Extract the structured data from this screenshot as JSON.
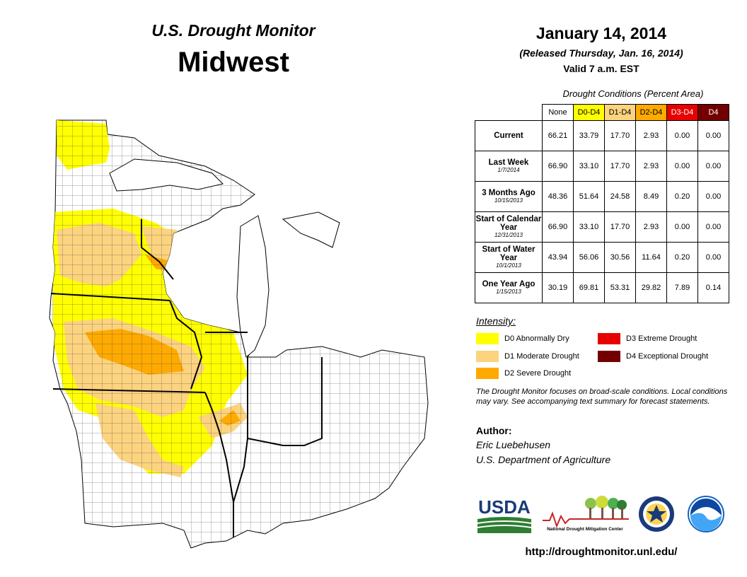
{
  "header": {
    "series_title": "U.S. Drought Monitor",
    "region": "Midwest",
    "date": "January 14, 2014",
    "released": "(Released Thursday, Jan. 16, 2014)",
    "valid": "Valid 7 a.m. EST"
  },
  "table": {
    "caption": "Drought Conditions (Percent Area)",
    "columns": [
      {
        "label": "None",
        "color": "#ffffff",
        "text_color": "#000000"
      },
      {
        "label": "D0-D4",
        "color": "#ffff00",
        "text_color": "#000000"
      },
      {
        "label": "D1-D4",
        "color": "#fcd37f",
        "text_color": "#000000"
      },
      {
        "label": "D2-D4",
        "color": "#ffaa00",
        "text_color": "#000000"
      },
      {
        "label": "D3-D4",
        "color": "#e60000",
        "text_color": "#ffffff"
      },
      {
        "label": "D4",
        "color": "#730000",
        "text_color": "#ffffff"
      }
    ],
    "rows": [
      {
        "label": "Current",
        "sub": "",
        "values": [
          "66.21",
          "33.79",
          "17.70",
          "2.93",
          "0.00",
          "0.00"
        ]
      },
      {
        "label": "Last Week",
        "sub": "1/7/2014",
        "values": [
          "66.90",
          "33.10",
          "17.70",
          "2.93",
          "0.00",
          "0.00"
        ]
      },
      {
        "label": "3 Months Ago",
        "sub": "10/15/2013",
        "values": [
          "48.36",
          "51.64",
          "24.58",
          "8.49",
          "0.20",
          "0.00"
        ]
      },
      {
        "label": "Start of Calendar Year",
        "sub": "12/31/2013",
        "values": [
          "66.90",
          "33.10",
          "17.70",
          "2.93",
          "0.00",
          "0.00"
        ]
      },
      {
        "label": "Start of Water Year",
        "sub": "10/1/2013",
        "values": [
          "43.94",
          "56.06",
          "30.56",
          "11.64",
          "0.20",
          "0.00"
        ]
      },
      {
        "label": "One Year Ago",
        "sub": "1/15/2013",
        "values": [
          "30.19",
          "69.81",
          "53.31",
          "29.82",
          "7.89",
          "0.14"
        ]
      }
    ]
  },
  "legend": {
    "title": "Intensity:",
    "items": [
      {
        "label": "D0 Abnormally Dry",
        "color": "#ffff00"
      },
      {
        "label": "D1 Moderate Drought",
        "color": "#fcd37f"
      },
      {
        "label": "D2 Severe Drought",
        "color": "#ffaa00"
      },
      {
        "label": "D3 Extreme Drought",
        "color": "#e60000"
      },
      {
        "label": "D4 Exceptional Drought",
        "color": "#730000"
      }
    ]
  },
  "note": "The Drought Monitor focuses on broad-scale conditions. Local conditions may vary. See accompanying text summary for forecast statements.",
  "author": {
    "label": "Author:",
    "name": "Eric Luebehusen",
    "org": "U.S. Department of Agriculture"
  },
  "logos": {
    "usda": "USDA",
    "ndmc": "National Drought Mitigation Center"
  },
  "url": "http://droughtmonitor.unl.edu/"
}
